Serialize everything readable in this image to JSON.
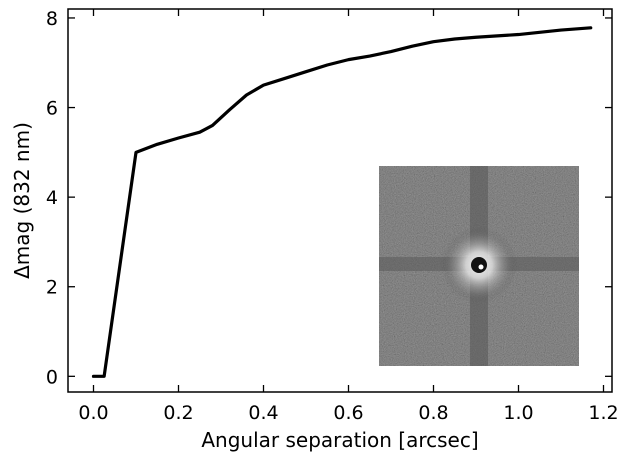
{
  "chart_data": {
    "type": "line",
    "xlabel": "Angular separation [arcsec]",
    "ylabel": "Δmag (832 nm)",
    "xlim": [
      -0.06,
      1.22
    ],
    "ylim": [
      -0.35,
      8.2
    ],
    "xticks": [
      0.0,
      0.2,
      0.4,
      0.6,
      0.8,
      1.0,
      1.2
    ],
    "xtick_labels": [
      "0.0",
      "0.2",
      "0.4",
      "0.6",
      "0.8",
      "1.0",
      "1.2"
    ],
    "yticks": [
      0,
      2,
      4,
      6,
      8
    ],
    "ytick_labels": [
      "0",
      "2",
      "4",
      "6",
      "8"
    ],
    "grid": false,
    "legend": "none",
    "line_color": "#000000",
    "series": [
      {
        "x": [
          0.0,
          0.025,
          0.1,
          0.15,
          0.2,
          0.25,
          0.28,
          0.32,
          0.36,
          0.4,
          0.45,
          0.5,
          0.55,
          0.6,
          0.65,
          0.7,
          0.75,
          0.8,
          0.85,
          0.9,
          0.95,
          1.0,
          1.05,
          1.1,
          1.17
        ],
        "y": [
          0.0,
          0.0,
          5.0,
          5.18,
          5.32,
          5.45,
          5.6,
          5.95,
          6.28,
          6.5,
          6.65,
          6.8,
          6.95,
          7.07,
          7.15,
          7.25,
          7.37,
          7.47,
          7.53,
          7.57,
          7.6,
          7.63,
          7.68,
          7.73,
          7.78
        ]
      }
    ]
  },
  "inset": {
    "description_icon": "speckle-image-icon",
    "background": "#3a3a3a",
    "core": "#ffffff"
  }
}
